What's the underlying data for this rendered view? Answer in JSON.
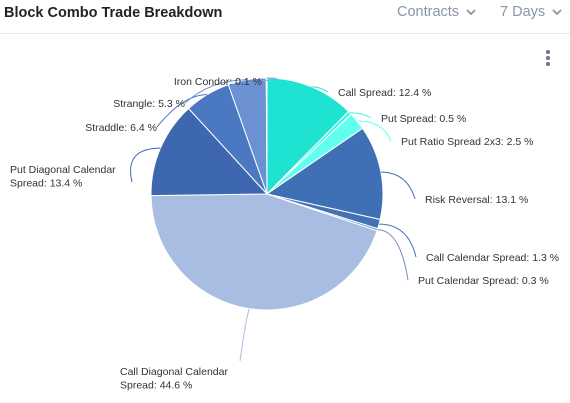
{
  "header": {
    "title": "Block Combo Trade Breakdown",
    "metric_label": "Contracts",
    "period_label": "7 Days"
  },
  "icons": {
    "dropdown": "chevron-down-icon",
    "menu": "kebab-menu-icon"
  },
  "chart_data": {
    "type": "pie",
    "unit": "%",
    "start": "12 o'clock",
    "direction": "clockwise",
    "slices": [
      {
        "label": [
          "Call Spread: 12.4 %"
        ],
        "value": 12.4,
        "color": "#1ee2d2"
      },
      {
        "label": [
          "Put Spread: 0.5 %"
        ],
        "value": 0.5,
        "color": "#3ef0e4"
      },
      {
        "label": [
          "Put Ratio Spread 2x3: 2.5 %"
        ],
        "value": 2.5,
        "color": "#62fff0"
      },
      {
        "label": [
          "Risk Reversal: 13.1 %"
        ],
        "value": 13.1,
        "color": "#3f6fb5"
      },
      {
        "label": [
          "Call Calendar Spread: 1.3 %"
        ],
        "value": 1.3,
        "color": "#4470b6"
      },
      {
        "label": [
          "Put Calendar Spread: 0.3 %"
        ],
        "value": 0.3,
        "color": "#6b8fc8"
      },
      {
        "label": [
          "Call Diagonal Calendar",
          "Spread: 44.6 %"
        ],
        "value": 44.6,
        "color": "#a9bde3"
      },
      {
        "label": [
          "Put Diagonal Calendar",
          "Spread: 13.4 %"
        ],
        "value": 13.4,
        "color": "#3d68b0"
      },
      {
        "label": [
          "Straddle: 6.4 %"
        ],
        "value": 6.4,
        "color": "#4a79c2"
      },
      {
        "label": [
          "Strangle: 5.3 %"
        ],
        "value": 5.3,
        "color": "#6b91d2"
      },
      {
        "label": [
          "Iron Condor: 0.1 %"
        ],
        "value": 0.1,
        "color": "#8aa8e0"
      }
    ]
  }
}
